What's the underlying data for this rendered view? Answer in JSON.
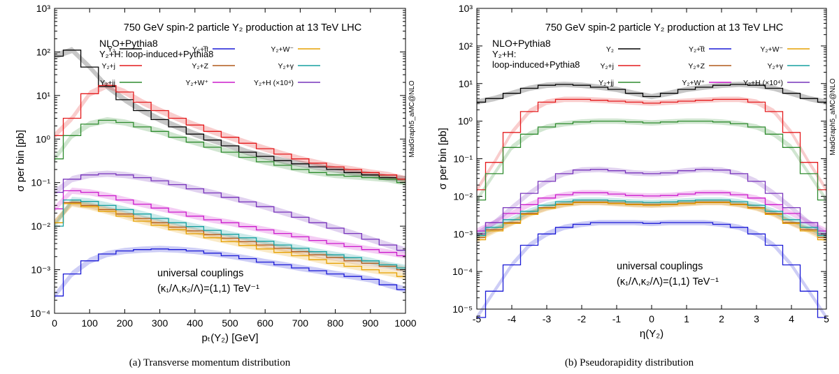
{
  "chart_data": [
    {
      "type": "line",
      "title": "750 GeV spin-2 particle Y₂ production at 13 TeV LHC",
      "subtitle_lines": [
        "NLO+Pythia8",
        "Y₂+H: loop-induced+Pythia8"
      ],
      "annotation_lines": [
        "universal couplings",
        "(κ₁/Λ,κ₂/Λ)=(1,1) TeV⁻¹"
      ],
      "watermark": "MadGraph5_aMC@NLO",
      "xlabel": "pₜ(Y₂) [GeV]",
      "ylabel": "σ per bin [pb]",
      "xlim": [
        0,
        1000
      ],
      "ylim": [
        0.0001,
        1000
      ],
      "yscale": "log",
      "xticks": [
        "0",
        "100",
        "200",
        "300",
        "400",
        "500",
        "600",
        "700",
        "800",
        "900",
        "1000"
      ],
      "yticks": [
        "10⁻⁴",
        "10⁻³",
        "10⁻²",
        "10⁻¹",
        "10⁰",
        "10¹",
        "10²",
        "10³"
      ],
      "caption": "(a) Transverse momentum distribution",
      "x": [
        0,
        50,
        100,
        150,
        200,
        250,
        300,
        350,
        400,
        450,
        500,
        550,
        600,
        650,
        700,
        750,
        800,
        850,
        900,
        950,
        1000
      ],
      "series": [
        {
          "name": "Y₂",
          "color": "#000000",
          "values": [
            80,
            110,
            45,
            16,
            8,
            4.5,
            2.8,
            1.9,
            1.3,
            0.95,
            0.7,
            0.5,
            0.4,
            0.32,
            0.27,
            0.23,
            0.2,
            0.17,
            0.15,
            0.13,
            0.12
          ]
        },
        {
          "name": "Y₂+j",
          "color": "#e41a1c",
          "values": [
            1.2,
            3,
            11,
            17,
            12,
            7,
            4.5,
            3,
            2.1,
            1.5,
            1.1,
            0.8,
            0.6,
            0.45,
            0.35,
            0.28,
            0.23,
            0.2,
            0.17,
            0.15,
            0.12
          ]
        },
        {
          "name": "Y₂+jj",
          "color": "#2e8b2e",
          "values": [
            0.35,
            1.2,
            2.2,
            2.7,
            2.4,
            1.9,
            1.5,
            1.1,
            0.85,
            0.65,
            0.5,
            0.38,
            0.3,
            0.25,
            0.2,
            0.17,
            0.15,
            0.14,
            0.13,
            0.12,
            0.1
          ]
        },
        {
          "name": "Y₂+t̅t",
          "color": "#1a1ad6",
          "values": [
            0.00025,
            0.0008,
            0.0016,
            0.0023,
            0.0027,
            0.0029,
            0.003,
            0.0029,
            0.0027,
            0.0024,
            0.0021,
            0.0018,
            0.0015,
            0.0013,
            0.0011,
            0.00095,
            0.0008,
            0.0007,
            0.0006,
            0.00045,
            0.00035
          ]
        },
        {
          "name": "Y₂+Z",
          "color": "#b05a1a",
          "values": [
            0.012,
            0.035,
            0.03,
            0.024,
            0.019,
            0.015,
            0.012,
            0.0095,
            0.0078,
            0.0064,
            0.0053,
            0.0044,
            0.0037,
            0.0031,
            0.0026,
            0.0022,
            0.0019,
            0.0016,
            0.0014,
            0.0012,
            0.001
          ]
        },
        {
          "name": "Y₂+W⁺",
          "color": "#cc1acc",
          "values": [
            0.025,
            0.065,
            0.06,
            0.05,
            0.04,
            0.032,
            0.026,
            0.021,
            0.017,
            0.014,
            0.012,
            0.0098,
            0.0082,
            0.0068,
            0.0057,
            0.0047,
            0.004,
            0.0034,
            0.0029,
            0.0025,
            0.0021
          ]
        },
        {
          "name": "Y₂+H (×10⁴)",
          "color": "#7733bb",
          "values": [
            0.06,
            0.12,
            0.15,
            0.16,
            0.15,
            0.13,
            0.11,
            0.09,
            0.072,
            0.058,
            0.046,
            0.036,
            0.028,
            0.021,
            0.016,
            0.012,
            0.009,
            0.0068,
            0.005,
            0.0037,
            0.0028
          ]
        },
        {
          "name": "Y₂+W⁻",
          "color": "#e6a000",
          "values": [
            0.012,
            0.033,
            0.028,
            0.022,
            0.017,
            0.013,
            0.0105,
            0.0083,
            0.0067,
            0.0054,
            0.0044,
            0.0036,
            0.003,
            0.0025,
            0.0021,
            0.0017,
            0.0014,
            0.0012,
            0.001,
            0.00085,
            0.0007
          ]
        },
        {
          "name": "Y₂+γ",
          "color": "#16a0a0",
          "values": [
            0.01,
            0.04,
            0.037,
            0.03,
            0.024,
            0.019,
            0.015,
            0.012,
            0.0098,
            0.008,
            0.0065,
            0.0054,
            0.0045,
            0.0037,
            0.0031,
            0.0026,
            0.0022,
            0.0019,
            0.0016,
            0.0013,
            0.0011
          ]
        }
      ]
    },
    {
      "type": "line",
      "title": "750 GeV spin-2 particle Y₂ production at 13 TeV LHC",
      "subtitle_lines": [
        "NLO+Pythia8",
        "Y₂+H:",
        "loop-induced+Pythia8"
      ],
      "annotation_lines": [
        "universal couplings",
        "(κ₁/Λ,κ₂/Λ)=(1,1) TeV⁻¹"
      ],
      "watermark": "MadGraph5_aMC@NLO",
      "xlabel": "η(Y₂)",
      "ylabel": "σ per bin [pb]",
      "xlim": [
        -5,
        5
      ],
      "ylim": [
        1e-05,
        1000
      ],
      "yscale": "log",
      "xticks": [
        "-5",
        "-4",
        "-3",
        "-2",
        "-1",
        "0",
        "1",
        "2",
        "3",
        "4",
        "5"
      ],
      "yticks": [
        "10⁻⁵",
        "10⁻⁴",
        "10⁻³",
        "10⁻²",
        "10⁻¹",
        "10⁰",
        "10¹",
        "10²",
        "10³"
      ],
      "caption": "(b) Pseudorapidity distribution",
      "x": [
        -5,
        -4.5,
        -4,
        -3.5,
        -3,
        -2.5,
        -2,
        -1.5,
        -1,
        -0.5,
        0,
        0.5,
        1,
        1.5,
        2,
        2.5,
        3,
        3.5,
        4,
        4.5,
        5
      ],
      "series": [
        {
          "name": "Y₂",
          "color": "#000000",
          "values": [
            3.2,
            4,
            5.5,
            7.5,
            9,
            9.5,
            9,
            8,
            7,
            5.5,
            4.5,
            5.5,
            7,
            8,
            9,
            9.5,
            9,
            7.5,
            5.5,
            4,
            3.2
          ]
        },
        {
          "name": "Y₂+j",
          "color": "#e41a1c",
          "values": [
            0.015,
            0.08,
            0.5,
            1.8,
            3.2,
            3.8,
            3.8,
            3.6,
            3.4,
            3.2,
            3,
            3.2,
            3.4,
            3.6,
            3.8,
            3.8,
            3.2,
            1.8,
            0.5,
            0.08,
            0.015
          ]
        },
        {
          "name": "Y₂+jj",
          "color": "#2e8b2e",
          "values": [
            0.008,
            0.04,
            0.2,
            0.45,
            0.7,
            0.85,
            0.95,
            1,
            1,
            0.95,
            0.9,
            0.95,
            1,
            1,
            0.95,
            0.85,
            0.7,
            0.45,
            0.2,
            0.04,
            0.008
          ]
        },
        {
          "name": "Y₂+t̅t",
          "color": "#1a1ad6",
          "values": [
            6e-06,
            3e-05,
            0.00015,
            0.0005,
            0.001,
            0.0015,
            0.0018,
            0.002,
            0.002,
            0.002,
            0.0019,
            0.002,
            0.002,
            0.002,
            0.0018,
            0.0015,
            0.001,
            0.0005,
            0.00015,
            3e-05,
            6e-06
          ]
        },
        {
          "name": "Y₂+Z",
          "color": "#b05a1a",
          "values": [
            0.0008,
            0.0013,
            0.002,
            0.0035,
            0.005,
            0.0062,
            0.007,
            0.007,
            0.0066,
            0.0062,
            0.006,
            0.0062,
            0.0066,
            0.007,
            0.007,
            0.0062,
            0.005,
            0.0035,
            0.002,
            0.0013,
            0.0008
          ]
        },
        {
          "name": "Y₂+W⁺",
          "color": "#cc1acc",
          "values": [
            0.0012,
            0.002,
            0.0035,
            0.006,
            0.009,
            0.011,
            0.0125,
            0.0125,
            0.0115,
            0.0105,
            0.0102,
            0.0105,
            0.0115,
            0.0125,
            0.0125,
            0.011,
            0.009,
            0.006,
            0.0035,
            0.002,
            0.0012
          ]
        },
        {
          "name": "Y₂+H (×10⁴)",
          "color": "#7733bb",
          "values": [
            0.001,
            0.002,
            0.005,
            0.012,
            0.025,
            0.04,
            0.05,
            0.052,
            0.048,
            0.042,
            0.04,
            0.042,
            0.048,
            0.052,
            0.05,
            0.04,
            0.025,
            0.012,
            0.005,
            0.002,
            0.001
          ]
        },
        {
          "name": "Y₂+W⁻",
          "color": "#e6a000",
          "values": [
            0.0007,
            0.0012,
            0.0019,
            0.0033,
            0.0048,
            0.006,
            0.0068,
            0.0068,
            0.0064,
            0.006,
            0.0058,
            0.006,
            0.0064,
            0.0068,
            0.0068,
            0.006,
            0.0048,
            0.0033,
            0.0019,
            0.0012,
            0.0007
          ]
        },
        {
          "name": "Y₂+γ",
          "color": "#16a0a0",
          "values": [
            0.0009,
            0.0015,
            0.0024,
            0.004,
            0.0058,
            0.0072,
            0.008,
            0.008,
            0.0076,
            0.0071,
            0.0069,
            0.0071,
            0.0076,
            0.008,
            0.008,
            0.0072,
            0.0058,
            0.004,
            0.0024,
            0.0015,
            0.0009
          ]
        }
      ]
    }
  ]
}
